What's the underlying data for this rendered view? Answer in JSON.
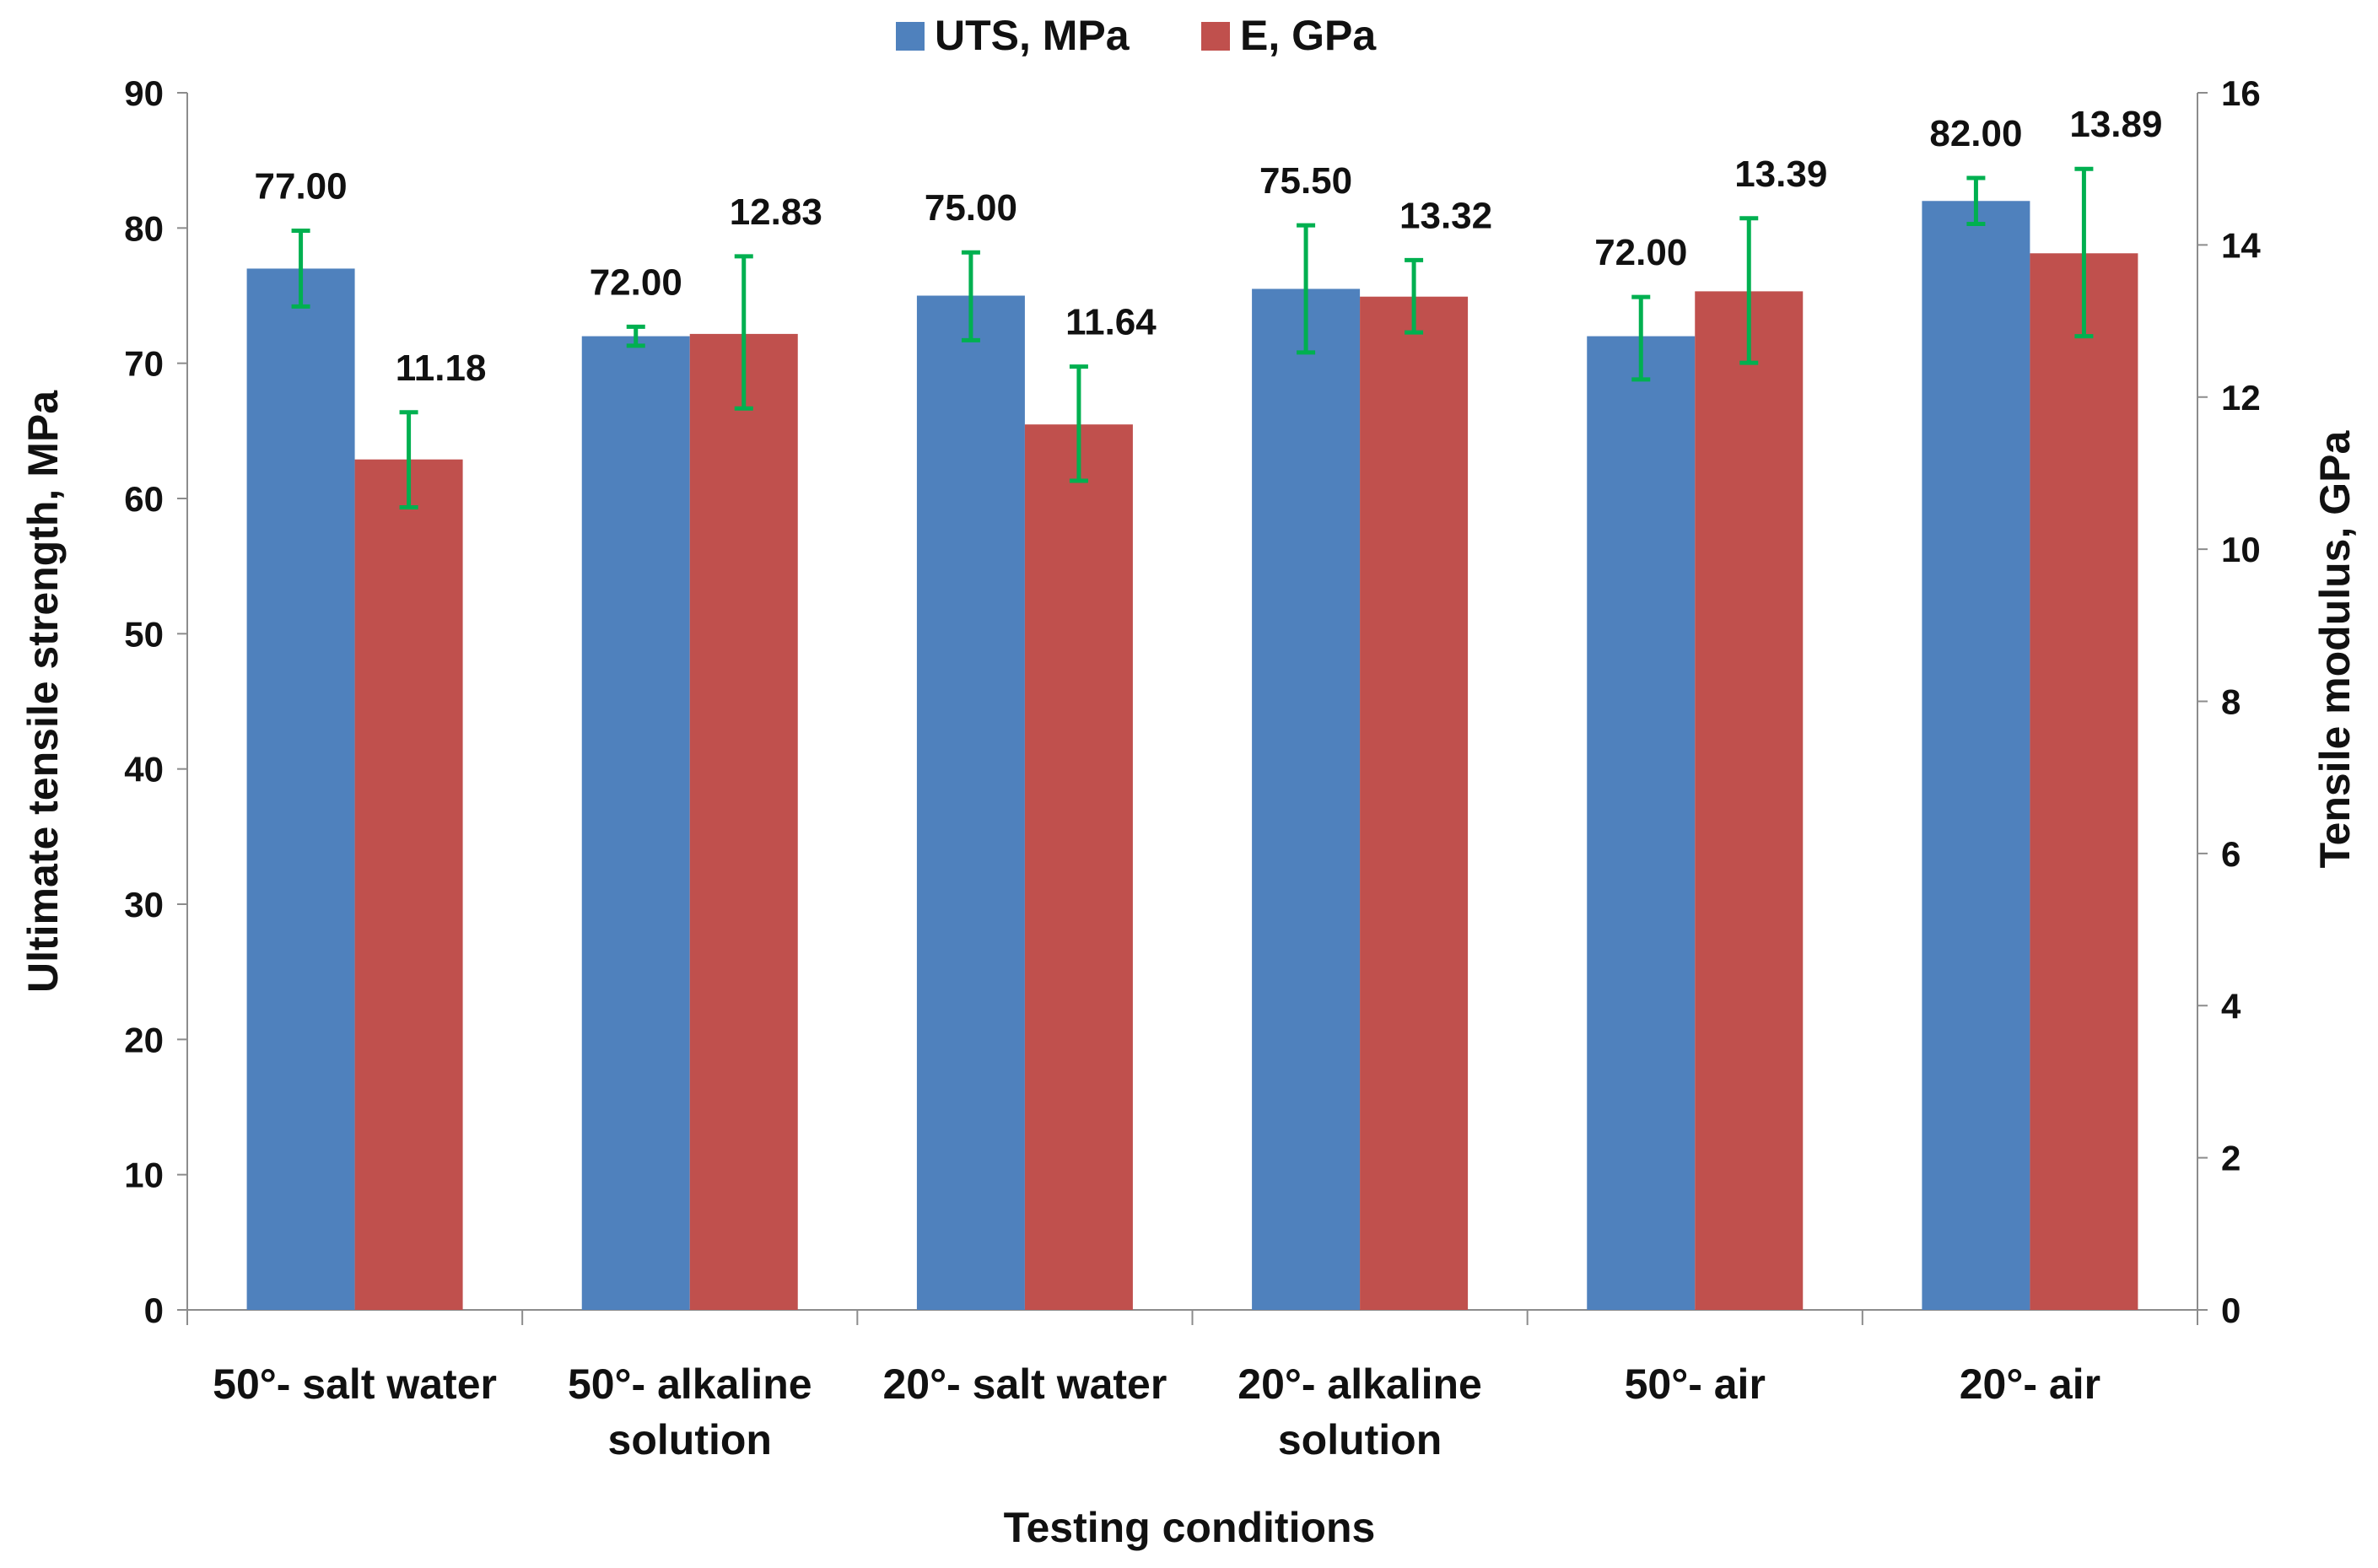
{
  "chart_data": {
    "type": "bar",
    "title": "",
    "xlabel": "Testing conditions",
    "ylabel": "Ultimate tensile strength, MPa",
    "y2label": "Tensile modulus, GPa",
    "ylim": [
      0,
      90
    ],
    "y2lim": [
      0,
      16
    ],
    "yticks": [
      "0",
      "10",
      "20",
      "30",
      "40",
      "50",
      "60",
      "70",
      "80",
      "90"
    ],
    "y2ticks": [
      "0",
      "2",
      "4",
      "6",
      "8",
      "10",
      "12",
      "14",
      "16"
    ],
    "legend_position": "top-center",
    "grid": false,
    "categories": [
      [
        "50°- salt water"
      ],
      [
        "50°- alkaline",
        "solution"
      ],
      [
        "20°- salt water"
      ],
      [
        "20°- alkaline",
        "solution"
      ],
      [
        "50°- air"
      ],
      [
        "20°- air"
      ]
    ],
    "series": [
      {
        "name": "UTS, MPa",
        "axis": "left",
        "color": "#4F81BD",
        "values": [
          77.0,
          72.0,
          75.0,
          75.5,
          72.0,
          82.0
        ],
        "labels": [
          "77.00",
          "72.00",
          "75.00",
          "75.50",
          "72.00",
          "82.00"
        ],
        "error_low": [
          74.2,
          71.3,
          71.7,
          70.8,
          68.8,
          80.3
        ],
        "error_high": [
          79.8,
          72.7,
          78.2,
          80.2,
          74.9,
          83.7
        ]
      },
      {
        "name": "E, GPa",
        "axis": "right",
        "color": "#C0504D",
        "values": [
          11.18,
          12.83,
          11.64,
          13.32,
          13.39,
          13.89
        ],
        "labels": [
          "11.18",
          "12.83",
          "11.64",
          "13.32",
          "13.39",
          "13.89"
        ],
        "error_low": [
          10.55,
          11.85,
          10.9,
          12.85,
          12.45,
          12.8
        ],
        "error_high": [
          11.8,
          13.85,
          12.4,
          13.8,
          14.35,
          15.0
        ]
      }
    ],
    "error_bar_color": "#00B050"
  }
}
